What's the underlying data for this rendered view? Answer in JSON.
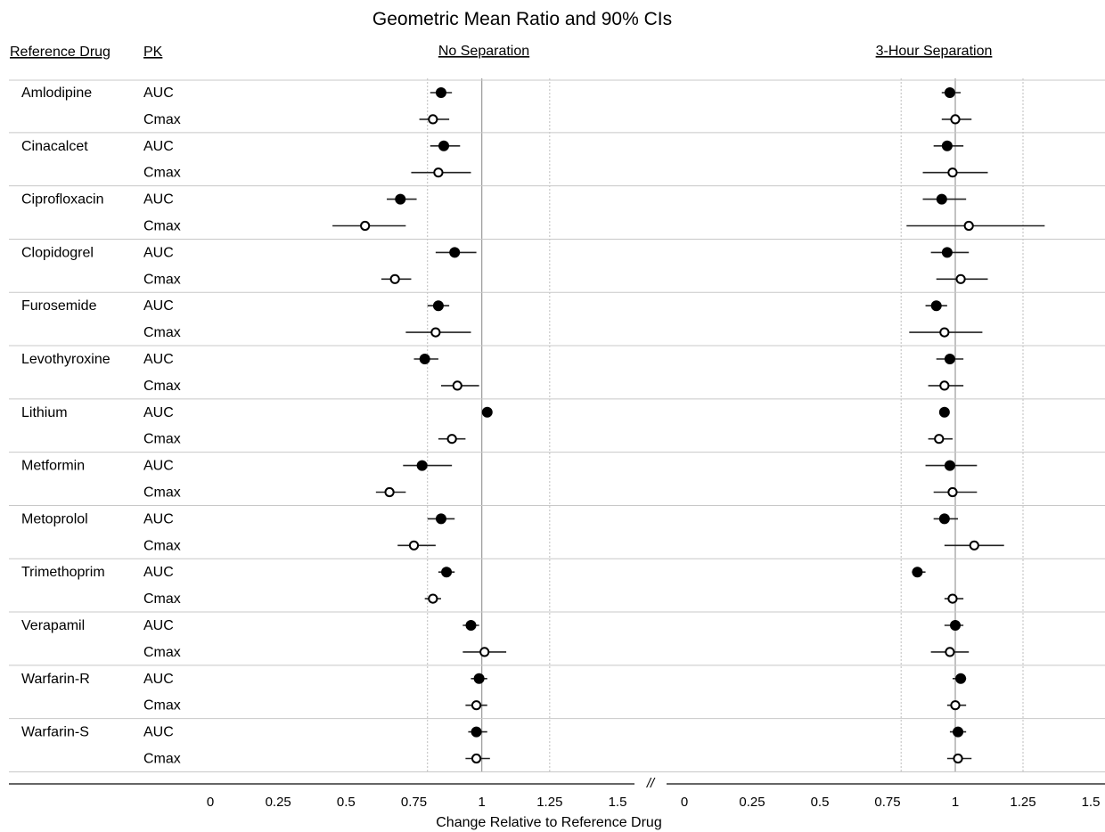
{
  "chart_data": {
    "type": "forest",
    "title": "Geometric Mean Ratio and 90% CIs",
    "column_headers": {
      "reference_drug": "Reference Drug",
      "pk": "PK"
    },
    "panels": [
      {
        "label": "No Separation",
        "x_range": [
          0,
          1.5
        ],
        "reference_line": 1.0,
        "bounds": [
          0.8,
          1.25
        ]
      },
      {
        "label": "3-Hour Separation",
        "x_range": [
          0,
          1.5
        ],
        "reference_line": 1.0,
        "bounds": [
          0.8,
          1.25
        ]
      }
    ],
    "xlabel": "Change Relative to Reference Drug",
    "axis_break": "//",
    "x_ticks": [
      "0",
      "0.25",
      "0.5",
      "0.75",
      "1",
      "1.25",
      "1.5"
    ],
    "legend_markers": {
      "AUC": "filled circle",
      "Cmax": "open circle"
    },
    "rows": [
      {
        "drug": "Amlodipine",
        "pk": "AUC",
        "no_sep": [
          0.85,
          0.81,
          0.89
        ],
        "sep3h": [
          0.98,
          0.95,
          1.02
        ]
      },
      {
        "drug": "",
        "pk": "Cmax",
        "no_sep": [
          0.82,
          0.77,
          0.88
        ],
        "sep3h": [
          1.0,
          0.95,
          1.06
        ]
      },
      {
        "drug": "Cinacalcet",
        "pk": "AUC",
        "no_sep": [
          0.86,
          0.81,
          0.92
        ],
        "sep3h": [
          0.97,
          0.92,
          1.03
        ]
      },
      {
        "drug": "",
        "pk": "Cmax",
        "no_sep": [
          0.84,
          0.74,
          0.96
        ],
        "sep3h": [
          0.99,
          0.88,
          1.12
        ]
      },
      {
        "drug": "Ciprofloxacin",
        "pk": "AUC",
        "no_sep": [
          0.7,
          0.65,
          0.76
        ],
        "sep3h": [
          0.95,
          0.88,
          1.04
        ]
      },
      {
        "drug": "",
        "pk": "Cmax",
        "no_sep": [
          0.57,
          0.45,
          0.72
        ],
        "sep3h": [
          1.05,
          0.82,
          1.33
        ]
      },
      {
        "drug": "Clopidogrel",
        "pk": "AUC",
        "no_sep": [
          0.9,
          0.83,
          0.98
        ],
        "sep3h": [
          0.97,
          0.91,
          1.05
        ]
      },
      {
        "drug": "",
        "pk": "Cmax",
        "no_sep": [
          0.68,
          0.63,
          0.74
        ],
        "sep3h": [
          1.02,
          0.93,
          1.12
        ]
      },
      {
        "drug": "Furosemide",
        "pk": "AUC",
        "no_sep": [
          0.84,
          0.8,
          0.88
        ],
        "sep3h": [
          0.93,
          0.89,
          0.97
        ]
      },
      {
        "drug": "",
        "pk": "Cmax",
        "no_sep": [
          0.83,
          0.72,
          0.96
        ],
        "sep3h": [
          0.96,
          0.83,
          1.1
        ]
      },
      {
        "drug": "Levothyroxine",
        "pk": "AUC",
        "no_sep": [
          0.79,
          0.75,
          0.84
        ],
        "sep3h": [
          0.98,
          0.93,
          1.03
        ]
      },
      {
        "drug": "",
        "pk": "Cmax",
        "no_sep": [
          0.91,
          0.85,
          0.99
        ],
        "sep3h": [
          0.96,
          0.9,
          1.03
        ]
      },
      {
        "drug": "Lithium",
        "pk": "AUC",
        "no_sep": [
          1.02,
          1.01,
          1.03
        ],
        "sep3h": [
          0.96,
          0.95,
          0.97
        ]
      },
      {
        "drug": "",
        "pk": "Cmax",
        "no_sep": [
          0.89,
          0.84,
          0.94
        ],
        "sep3h": [
          0.94,
          0.9,
          0.99
        ]
      },
      {
        "drug": "Metformin",
        "pk": "AUC",
        "no_sep": [
          0.78,
          0.71,
          0.89
        ],
        "sep3h": [
          0.98,
          0.89,
          1.08
        ]
      },
      {
        "drug": "",
        "pk": "Cmax",
        "no_sep": [
          0.66,
          0.61,
          0.72
        ],
        "sep3h": [
          0.99,
          0.92,
          1.08
        ]
      },
      {
        "drug": "Metoprolol",
        "pk": "AUC",
        "no_sep": [
          0.85,
          0.8,
          0.9
        ],
        "sep3h": [
          0.96,
          0.92,
          1.01
        ]
      },
      {
        "drug": "",
        "pk": "Cmax",
        "no_sep": [
          0.75,
          0.69,
          0.83
        ],
        "sep3h": [
          1.07,
          0.96,
          1.18
        ]
      },
      {
        "drug": "Trimethoprim",
        "pk": "AUC",
        "no_sep": [
          0.87,
          0.84,
          0.9
        ],
        "sep3h": [
          0.86,
          0.84,
          0.89
        ]
      },
      {
        "drug": "",
        "pk": "Cmax",
        "no_sep": [
          0.82,
          0.79,
          0.85
        ],
        "sep3h": [
          0.99,
          0.96,
          1.03
        ]
      },
      {
        "drug": "Verapamil",
        "pk": "AUC",
        "no_sep": [
          0.96,
          0.93,
          0.99
        ],
        "sep3h": [
          1.0,
          0.96,
          1.03
        ]
      },
      {
        "drug": "",
        "pk": "Cmax",
        "no_sep": [
          1.01,
          0.93,
          1.09
        ],
        "sep3h": [
          0.98,
          0.91,
          1.05
        ]
      },
      {
        "drug": "Warfarin-R",
        "pk": "AUC",
        "no_sep": [
          0.99,
          0.96,
          1.02
        ],
        "sep3h": [
          1.02,
          0.99,
          1.04
        ]
      },
      {
        "drug": "",
        "pk": "Cmax",
        "no_sep": [
          0.98,
          0.94,
          1.02
        ],
        "sep3h": [
          1.0,
          0.97,
          1.04
        ]
      },
      {
        "drug": "Warfarin-S",
        "pk": "AUC",
        "no_sep": [
          0.98,
          0.95,
          1.02
        ],
        "sep3h": [
          1.01,
          0.98,
          1.04
        ]
      },
      {
        "drug": "",
        "pk": "Cmax",
        "no_sep": [
          0.98,
          0.94,
          1.03
        ],
        "sep3h": [
          1.01,
          0.97,
          1.06
        ]
      }
    ]
  }
}
